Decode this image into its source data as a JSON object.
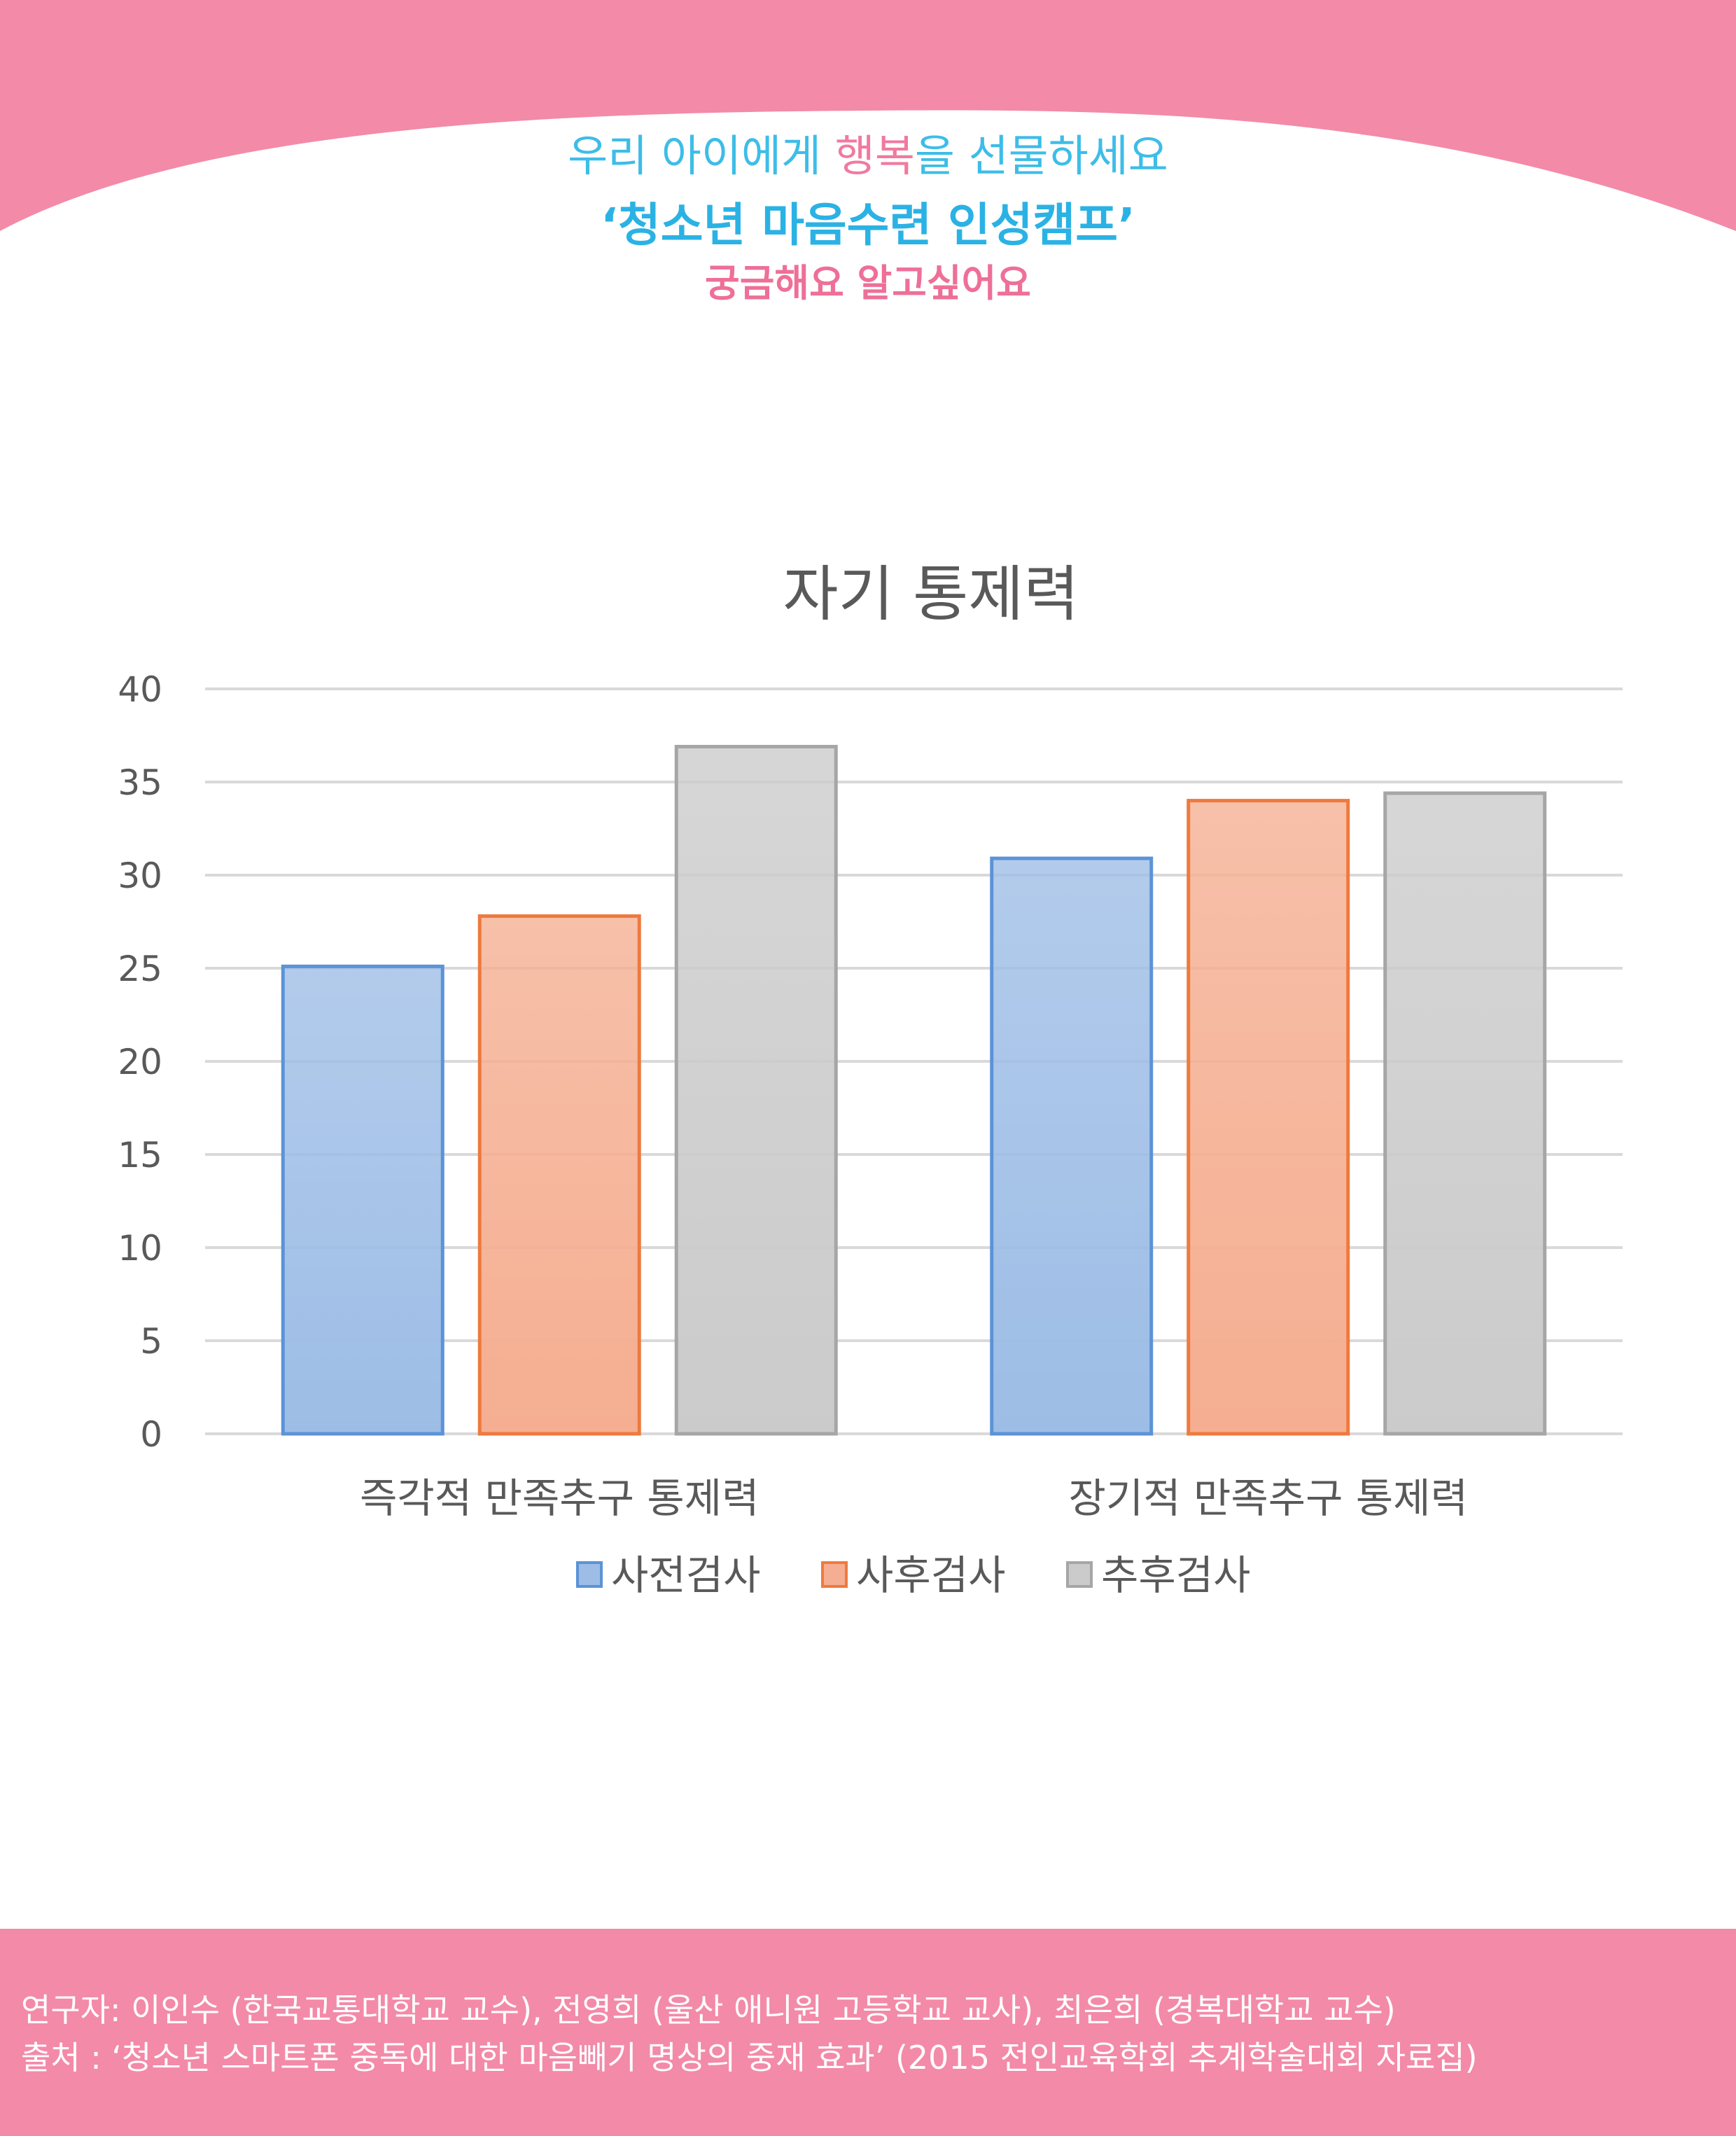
{
  "header": {
    "line1_before": "우리 아이에게 ",
    "line1_highlight": "행복",
    "line1_after": "을 선물하세요",
    "program_title": "‘청소년 마음수련 인성캠프’",
    "subtitle": "궁금해요 알고싶어요",
    "background_color": "#f38aa8",
    "highlight_color": "#f07aa0",
    "title_color": "#2bb2e4"
  },
  "chart_data": {
    "type": "bar",
    "title": "자기 통제력",
    "categories": [
      "즉각적 만족추구 통제력",
      "장기적 만족추구 통제력"
    ],
    "series": [
      {
        "name": "사전검사",
        "values": [
          25.1,
          30.9
        ],
        "color": "#9dbde6",
        "stroke": "#5b93d6"
      },
      {
        "name": "사후검사",
        "values": [
          27.8,
          34.0
        ],
        "color": "#f5ae91",
        "stroke": "#ee7a3e"
      },
      {
        "name": "추후검사",
        "values": [
          36.9,
          34.4
        ],
        "color": "#cbcbcb",
        "stroke": "#a6a6a6"
      }
    ],
    "yticks": [
      0,
      5,
      10,
      15,
      20,
      25,
      30,
      35,
      40
    ],
    "ylim": [
      0,
      40
    ],
    "grid": true,
    "legend_position": "bottom"
  },
  "footer": {
    "researchers": "연구자: 이인수 (한국교통대학교 교수), 전영희 (울산 애니원 고등학교 교사), 최은희 (경복대학교 교수)",
    "source": "출처 : ‘청소년 스마트폰 중독에 대한 마음빼기 명상의 중재 효과’ (2015 전인교육학회 추계학술대회 자료집)"
  }
}
